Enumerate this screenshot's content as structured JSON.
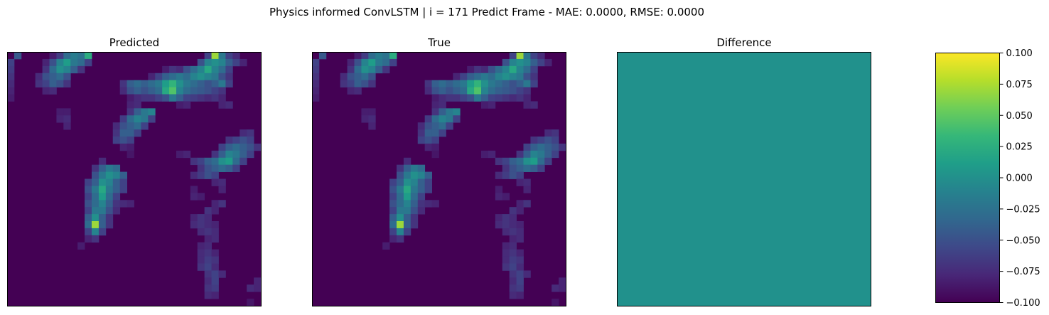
{
  "suptitle": "Physics informed ConvLSTM | i = 171 Predict Frame - MAE: 0.0000, RMSE: 0.0000",
  "chart_data": [
    {
      "type": "heatmap",
      "title": "Predicted",
      "grid": false,
      "xticks": [],
      "yticks": [],
      "rows": 36,
      "cols": 36,
      "colormap": "viridis",
      "note_values": "approximate normalized intensities read from colors",
      "cells": [
        [
          0,
          1,
          0.28
        ],
        [
          0,
          6,
          0.08
        ],
        [
          0,
          7,
          0.18
        ],
        [
          0,
          8,
          0.35
        ],
        [
          0,
          9,
          0.42
        ],
        [
          0,
          10,
          0.38
        ],
        [
          0,
          11,
          0.62
        ],
        [
          0,
          28,
          0.2
        ],
        [
          0,
          29,
          0.85
        ],
        [
          0,
          30,
          0.4
        ],
        [
          0,
          31,
          0.2
        ],
        [
          0,
          32,
          0.12
        ],
        [
          1,
          0,
          0.2
        ],
        [
          1,
          5,
          0.1
        ],
        [
          1,
          6,
          0.25
        ],
        [
          1,
          7,
          0.45
        ],
        [
          1,
          8,
          0.55
        ],
        [
          1,
          9,
          0.4
        ],
        [
          1,
          10,
          0.35
        ],
        [
          1,
          11,
          0.2
        ],
        [
          1,
          27,
          0.25
        ],
        [
          1,
          28,
          0.45
        ],
        [
          1,
          29,
          0.5
        ],
        [
          1,
          30,
          0.45
        ],
        [
          1,
          31,
          0.3
        ],
        [
          1,
          32,
          0.2
        ],
        [
          1,
          33,
          0.1
        ],
        [
          2,
          0,
          0.18
        ],
        [
          2,
          5,
          0.15
        ],
        [
          2,
          6,
          0.35
        ],
        [
          2,
          7,
          0.5
        ],
        [
          2,
          8,
          0.45
        ],
        [
          2,
          9,
          0.3
        ],
        [
          2,
          10,
          0.15
        ],
        [
          2,
          22,
          0.08
        ],
        [
          2,
          23,
          0.15
        ],
        [
          2,
          24,
          0.12
        ],
        [
          2,
          25,
          0.25
        ],
        [
          2,
          26,
          0.35
        ],
        [
          2,
          27,
          0.45
        ],
        [
          2,
          28,
          0.6
        ],
        [
          2,
          29,
          0.45
        ],
        [
          2,
          30,
          0.35
        ],
        [
          2,
          31,
          0.2
        ],
        [
          3,
          0,
          0.15
        ],
        [
          3,
          4,
          0.12
        ],
        [
          3,
          5,
          0.25
        ],
        [
          3,
          6,
          0.3
        ],
        [
          3,
          7,
          0.35
        ],
        [
          3,
          8,
          0.25
        ],
        [
          3,
          20,
          0.1
        ],
        [
          3,
          21,
          0.2
        ],
        [
          3,
          22,
          0.3
        ],
        [
          3,
          23,
          0.35
        ],
        [
          3,
          24,
          0.4
        ],
        [
          3,
          25,
          0.35
        ],
        [
          3,
          26,
          0.45
        ],
        [
          3,
          27,
          0.5
        ],
        [
          3,
          28,
          0.45
        ],
        [
          3,
          29,
          0.4
        ],
        [
          3,
          30,
          0.25
        ],
        [
          3,
          31,
          0.15
        ],
        [
          4,
          0,
          0.12
        ],
        [
          4,
          4,
          0.15
        ],
        [
          4,
          5,
          0.2
        ],
        [
          4,
          6,
          0.3
        ],
        [
          4,
          7,
          0.25
        ],
        [
          4,
          8,
          0.15
        ],
        [
          4,
          16,
          0.15
        ],
        [
          4,
          17,
          0.3
        ],
        [
          4,
          18,
          0.35
        ],
        [
          4,
          19,
          0.3
        ],
        [
          4,
          20,
          0.35
        ],
        [
          4,
          21,
          0.4
        ],
        [
          4,
          22,
          0.55
        ],
        [
          4,
          23,
          0.65
        ],
        [
          4,
          24,
          0.5
        ],
        [
          4,
          25,
          0.4
        ],
        [
          4,
          26,
          0.35
        ],
        [
          4,
          27,
          0.3
        ],
        [
          4,
          28,
          0.25
        ],
        [
          4,
          29,
          0.3
        ],
        [
          4,
          30,
          0.4
        ],
        [
          4,
          31,
          0.2
        ],
        [
          5,
          0,
          0.1
        ],
        [
          5,
          5,
          0.1
        ],
        [
          5,
          6,
          0.12
        ],
        [
          5,
          16,
          0.12
        ],
        [
          5,
          17,
          0.25
        ],
        [
          5,
          18,
          0.3
        ],
        [
          5,
          19,
          0.25
        ],
        [
          5,
          20,
          0.3
        ],
        [
          5,
          21,
          0.35
        ],
        [
          5,
          22,
          0.6
        ],
        [
          5,
          23,
          0.72
        ],
        [
          5,
          24,
          0.45
        ],
        [
          5,
          25,
          0.35
        ],
        [
          5,
          26,
          0.3
        ],
        [
          5,
          27,
          0.28
        ],
        [
          5,
          28,
          0.25
        ],
        [
          5,
          29,
          0.2
        ],
        [
          5,
          30,
          0.15
        ],
        [
          6,
          0,
          0.08
        ],
        [
          6,
          17,
          0.08
        ],
        [
          6,
          18,
          0.12
        ],
        [
          6,
          19,
          0.15
        ],
        [
          6,
          20,
          0.15
        ],
        [
          6,
          21,
          0.2
        ],
        [
          6,
          22,
          0.25
        ],
        [
          6,
          23,
          0.4
        ],
        [
          6,
          24,
          0.3
        ],
        [
          6,
          25,
          0.2
        ],
        [
          6,
          26,
          0.18
        ],
        [
          6,
          27,
          0.15
        ],
        [
          6,
          28,
          0.12
        ],
        [
          6,
          29,
          0.15
        ],
        [
          6,
          30,
          0.1
        ],
        [
          7,
          17,
          0.1
        ],
        [
          7,
          18,
          0.12
        ],
        [
          7,
          24,
          0.08
        ],
        [
          7,
          25,
          0.1
        ],
        [
          7,
          30,
          0.1
        ],
        [
          7,
          31,
          0.12
        ],
        [
          8,
          7,
          0.08
        ],
        [
          8,
          8,
          0.08
        ],
        [
          8,
          17,
          0.15
        ],
        [
          8,
          18,
          0.3
        ],
        [
          8,
          19,
          0.4
        ],
        [
          8,
          20,
          0.45
        ],
        [
          9,
          7,
          0.1
        ],
        [
          9,
          8,
          0.12
        ],
        [
          9,
          16,
          0.18
        ],
        [
          9,
          17,
          0.35
        ],
        [
          9,
          18,
          0.45
        ],
        [
          9,
          19,
          0.4
        ],
        [
          9,
          20,
          0.2
        ],
        [
          10,
          8,
          0.1
        ],
        [
          10,
          15,
          0.12
        ],
        [
          10,
          16,
          0.25
        ],
        [
          10,
          17,
          0.3
        ],
        [
          10,
          18,
          0.35
        ],
        [
          10,
          19,
          0.2
        ],
        [
          11,
          15,
          0.15
        ],
        [
          11,
          16,
          0.3
        ],
        [
          11,
          17,
          0.3
        ],
        [
          11,
          18,
          0.2
        ],
        [
          11,
          33,
          0.12
        ],
        [
          11,
          34,
          0.15
        ],
        [
          12,
          15,
          0.2
        ],
        [
          12,
          16,
          0.25
        ],
        [
          12,
          17,
          0.2
        ],
        [
          12,
          31,
          0.15
        ],
        [
          12,
          32,
          0.2
        ],
        [
          12,
          33,
          0.25
        ],
        [
          12,
          34,
          0.2
        ],
        [
          13,
          16,
          0.1
        ],
        [
          13,
          17,
          0.08
        ],
        [
          13,
          30,
          0.2
        ],
        [
          13,
          31,
          0.3
        ],
        [
          13,
          32,
          0.35
        ],
        [
          13,
          33,
          0.3
        ],
        [
          13,
          34,
          0.25
        ],
        [
          13,
          35,
          0.15
        ],
        [
          14,
          17,
          0.06
        ],
        [
          14,
          24,
          0.08
        ],
        [
          14,
          25,
          0.1
        ],
        [
          14,
          29,
          0.15
        ],
        [
          14,
          30,
          0.3
        ],
        [
          14,
          31,
          0.45
        ],
        [
          14,
          32,
          0.4
        ],
        [
          14,
          33,
          0.3
        ],
        [
          14,
          34,
          0.2
        ],
        [
          15,
          13,
          0.12
        ],
        [
          15,
          26,
          0.15
        ],
        [
          15,
          27,
          0.2
        ],
        [
          15,
          28,
          0.3
        ],
        [
          15,
          29,
          0.35
        ],
        [
          15,
          30,
          0.5
        ],
        [
          15,
          31,
          0.55
        ],
        [
          15,
          32,
          0.35
        ],
        [
          15,
          33,
          0.2
        ],
        [
          16,
          12,
          0.15
        ],
        [
          16,
          13,
          0.3
        ],
        [
          16,
          14,
          0.4
        ],
        [
          16,
          15,
          0.35
        ],
        [
          16,
          27,
          0.15
        ],
        [
          16,
          28,
          0.25
        ],
        [
          16,
          29,
          0.3
        ],
        [
          16,
          30,
          0.35
        ],
        [
          16,
          31,
          0.3
        ],
        [
          16,
          32,
          0.2
        ],
        [
          17,
          12,
          0.25
        ],
        [
          17,
          13,
          0.4
        ],
        [
          17,
          14,
          0.5
        ],
        [
          17,
          15,
          0.45
        ],
        [
          17,
          16,
          0.3
        ],
        [
          17,
          26,
          0.12
        ],
        [
          17,
          27,
          0.18
        ],
        [
          17,
          28,
          0.25
        ],
        [
          17,
          29,
          0.2
        ],
        [
          18,
          11,
          0.2
        ],
        [
          18,
          12,
          0.3
        ],
        [
          18,
          13,
          0.5
        ],
        [
          18,
          14,
          0.45
        ],
        [
          18,
          15,
          0.3
        ],
        [
          18,
          16,
          0.2
        ],
        [
          18,
          29,
          0.1
        ],
        [
          18,
          30,
          0.12
        ],
        [
          19,
          11,
          0.25
        ],
        [
          19,
          12,
          0.4
        ],
        [
          19,
          13,
          0.6
        ],
        [
          19,
          14,
          0.4
        ],
        [
          19,
          15,
          0.3
        ],
        [
          19,
          16,
          0.2
        ],
        [
          19,
          26,
          0.08
        ],
        [
          19,
          30,
          0.1
        ],
        [
          20,
          11,
          0.2
        ],
        [
          20,
          12,
          0.35
        ],
        [
          20,
          13,
          0.55
        ],
        [
          20,
          14,
          0.35
        ],
        [
          20,
          15,
          0.2
        ],
        [
          20,
          26,
          0.1
        ],
        [
          20,
          27,
          0.08
        ],
        [
          21,
          11,
          0.25
        ],
        [
          21,
          12,
          0.35
        ],
        [
          21,
          13,
          0.45
        ],
        [
          21,
          14,
          0.3
        ],
        [
          21,
          15,
          0.15
        ],
        [
          21,
          16,
          0.12
        ],
        [
          21,
          17,
          0.1
        ],
        [
          21,
          29,
          0.1
        ],
        [
          21,
          30,
          0.15
        ],
        [
          22,
          11,
          0.2
        ],
        [
          22,
          12,
          0.4
        ],
        [
          22,
          13,
          0.4
        ],
        [
          22,
          14,
          0.25
        ],
        [
          22,
          15,
          0.12
        ],
        [
          22,
          28,
          0.15
        ],
        [
          22,
          29,
          0.1
        ],
        [
          23,
          11,
          0.3
        ],
        [
          23,
          12,
          0.5
        ],
        [
          23,
          13,
          0.3
        ],
        [
          23,
          14,
          0.15
        ],
        [
          23,
          26,
          0.1
        ],
        [
          23,
          27,
          0.15
        ],
        [
          23,
          28,
          0.12
        ],
        [
          24,
          11,
          0.35
        ],
        [
          24,
          12,
          0.85
        ],
        [
          24,
          13,
          0.3
        ],
        [
          24,
          14,
          0.15
        ],
        [
          24,
          26,
          0.12
        ],
        [
          24,
          27,
          0.15
        ],
        [
          24,
          28,
          0.12
        ],
        [
          24,
          29,
          0.1
        ],
        [
          25,
          11,
          0.2
        ],
        [
          25,
          12,
          0.45
        ],
        [
          25,
          13,
          0.2
        ],
        [
          25,
          27,
          0.12
        ],
        [
          25,
          28,
          0.15
        ],
        [
          25,
          29,
          0.12
        ],
        [
          26,
          11,
          0.1
        ],
        [
          26,
          12,
          0.15
        ],
        [
          26,
          28,
          0.1
        ],
        [
          26,
          29,
          0.12
        ],
        [
          27,
          10,
          0.08
        ],
        [
          27,
          27,
          0.1
        ],
        [
          27,
          28,
          0.12
        ],
        [
          28,
          27,
          0.12
        ],
        [
          28,
          28,
          0.15
        ],
        [
          28,
          29,
          0.1
        ],
        [
          29,
          27,
          0.12
        ],
        [
          29,
          28,
          0.18
        ],
        [
          29,
          29,
          0.15
        ],
        [
          30,
          27,
          0.15
        ],
        [
          30,
          28,
          0.2
        ],
        [
          30,
          29,
          0.12
        ],
        [
          31,
          28,
          0.15
        ],
        [
          31,
          29,
          0.2
        ],
        [
          31,
          30,
          0.12
        ],
        [
          32,
          28,
          0.12
        ],
        [
          32,
          29,
          0.2
        ],
        [
          32,
          35,
          0.1
        ],
        [
          33,
          28,
          0.15
        ],
        [
          33,
          29,
          0.18
        ],
        [
          33,
          34,
          0.12
        ],
        [
          33,
          35,
          0.1
        ],
        [
          34,
          28,
          0.12
        ],
        [
          34,
          29,
          0.1
        ],
        [
          35,
          34,
          0.06
        ]
      ]
    },
    {
      "type": "heatmap",
      "title": "True",
      "grid": false,
      "xticks": [],
      "yticks": [],
      "rows": 36,
      "cols": 36,
      "colormap": "viridis",
      "same_as": "Predicted"
    },
    {
      "type": "heatmap",
      "title": "Difference",
      "grid": false,
      "xticks": [],
      "yticks": [],
      "rows": 36,
      "cols": 36,
      "colormap": "viridis",
      "uniform_value": 0.0
    }
  ],
  "colorbar": {
    "colormap": "viridis",
    "range": [
      -0.1,
      0.1
    ],
    "ticks": [
      "0.100",
      "0.075",
      "0.050",
      "0.025",
      "0.000",
      "−0.025",
      "−0.050",
      "−0.075",
      "−0.100"
    ],
    "tick_values": [
      0.1,
      0.075,
      0.05,
      0.025,
      0.0,
      -0.025,
      -0.05,
      -0.075,
      -0.1
    ]
  },
  "colors": {
    "viridis": [
      "#440154",
      "#482878",
      "#3e4989",
      "#31688e",
      "#26828e",
      "#1f9e89",
      "#35b779",
      "#6ece58",
      "#b5de2b",
      "#fde725"
    ],
    "difference_fill": "#21918c",
    "frame": "#000000"
  }
}
